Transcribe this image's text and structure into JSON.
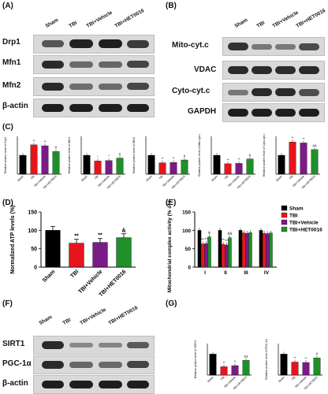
{
  "panelA": {
    "label": "(A)",
    "lanes": [
      "Sham",
      "TBI",
      "TBI+Vehicle",
      "TBI+HET0016"
    ],
    "rows": [
      "Drp1",
      "Mfn1",
      "Mfn2",
      "β-actin"
    ]
  },
  "panelB": {
    "label": "(B)",
    "lanes": [
      "Sham",
      "TBI",
      "TBI+Vehicle",
      "TBI+HET0016"
    ],
    "rows": [
      "Mito-cyt.c",
      "VDAC",
      "Cyto-cyt.c",
      "GAPDH"
    ]
  },
  "panelC": {
    "label": "(C)"
  },
  "panelD": {
    "label": "(D)"
  },
  "panelE": {
    "label": "(E)"
  },
  "panelF": {
    "label": "(F)",
    "lanes": [
      "Sham",
      "TBI",
      "TBI+Vehicle",
      "TBI+HET0016"
    ],
    "rows": [
      "SIRT1",
      "PGC-1α",
      "β-actin"
    ]
  },
  "panelG": {
    "label": "(G)"
  },
  "colors": {
    "Sham": "#000000",
    "TBI": "#e8141c",
    "TBI+Vehicle": "#7b1b86",
    "TBI+HET0016": "#1f8f2a"
  },
  "chart_data": [
    {
      "panel": "C1",
      "type": "bar",
      "ylabel": "Relative protein level of Drp1",
      "categories": [
        "Sham",
        "TBI",
        "TBI+Vehicle",
        "TBI+HET0016"
      ],
      "values": [
        1.0,
        1.55,
        1.5,
        1.2
      ],
      "annotations": [
        "",
        "**",
        "**",
        "&"
      ]
    },
    {
      "panel": "C2",
      "type": "bar",
      "ylabel": "Relative protein level of Mfn1",
      "categories": [
        "Sham",
        "TBI",
        "TBI+Vehicle",
        "TBI+HET0016"
      ],
      "values": [
        1.0,
        0.7,
        0.72,
        0.85
      ],
      "annotations": [
        "",
        "*",
        "*",
        "&"
      ]
    },
    {
      "panel": "C3",
      "type": "bar",
      "ylabel": "Relative protein level of Mfn2",
      "categories": [
        "Sham",
        "TBI",
        "TBI+Vehicle",
        "TBI+HET0016"
      ],
      "values": [
        1.0,
        0.6,
        0.62,
        0.75
      ],
      "annotations": [
        "",
        "**",
        "**",
        "&"
      ]
    },
    {
      "panel": "C4",
      "type": "bar",
      "ylabel": "Relative protein level of Mito-cyt.c",
      "categories": [
        "Sham",
        "TBI",
        "TBI+Vehicle",
        "TBI+HET0016"
      ],
      "values": [
        1.0,
        0.55,
        0.57,
        0.8
      ],
      "annotations": [
        "",
        "**",
        "**",
        "&"
      ]
    },
    {
      "panel": "C5",
      "type": "bar",
      "ylabel": "Relative protein level of Cyto-cyt.c",
      "categories": [
        "Sham",
        "TBI",
        "TBI+Vehicle",
        "TBI+HET0016"
      ],
      "values": [
        1.0,
        1.7,
        1.65,
        1.3
      ],
      "annotations": [
        "",
        "**",
        "**",
        "&&"
      ]
    },
    {
      "panel": "D",
      "type": "bar",
      "ylabel": "Normalized ATP levels (%)",
      "categories": [
        "Sham",
        "TBI",
        "TBI+Vehicle",
        "TBI+HET0016"
      ],
      "values": [
        100,
        65,
        67,
        80
      ],
      "ylim": [
        0,
        150
      ],
      "yticks": [
        0,
        50,
        100,
        150
      ],
      "annotations": [
        "",
        "**",
        "**",
        "&"
      ]
    },
    {
      "panel": "E",
      "type": "bar",
      "ylabel": "Mitochondrial complex activity (% of Sham)",
      "categories": [
        "I",
        "II",
        "III",
        "IV"
      ],
      "ylim": [
        0,
        150
      ],
      "yticks": [
        0,
        50,
        100,
        150
      ],
      "series": [
        {
          "name": "Sham",
          "values": [
            100,
            100,
            100,
            100
          ]
        },
        {
          "name": "TBI",
          "values": [
            63,
            62,
            93,
            92
          ]
        },
        {
          "name": "TBI+Vehicle",
          "values": [
            64,
            60,
            92,
            91
          ]
        },
        {
          "name": "TBI+HET0016",
          "values": [
            82,
            80,
            94,
            93
          ]
        }
      ],
      "annotations_I": [
        "",
        "**",
        "**",
        "&"
      ],
      "annotations_II": [
        "",
        "**",
        "**",
        "&&"
      ]
    },
    {
      "panel": "G1",
      "type": "bar",
      "ylabel": "Relative protein level of SIRT1",
      "categories": [
        "Sham",
        "TBI",
        "TBI+Vehicle",
        "TBI+HET0016"
      ],
      "values": [
        1.0,
        0.4,
        0.45,
        0.7
      ],
      "annotations": [
        "",
        "**",
        "**",
        "&&"
      ]
    },
    {
      "panel": "G2",
      "type": "bar",
      "ylabel": "Relative protein level of PGC-1α",
      "categories": [
        "Sham",
        "TBI",
        "TBI+Vehicle",
        "TBI+HET0016"
      ],
      "values": [
        1.0,
        0.62,
        0.6,
        0.82
      ],
      "annotations": [
        "",
        "**",
        "**",
        "&"
      ]
    }
  ]
}
